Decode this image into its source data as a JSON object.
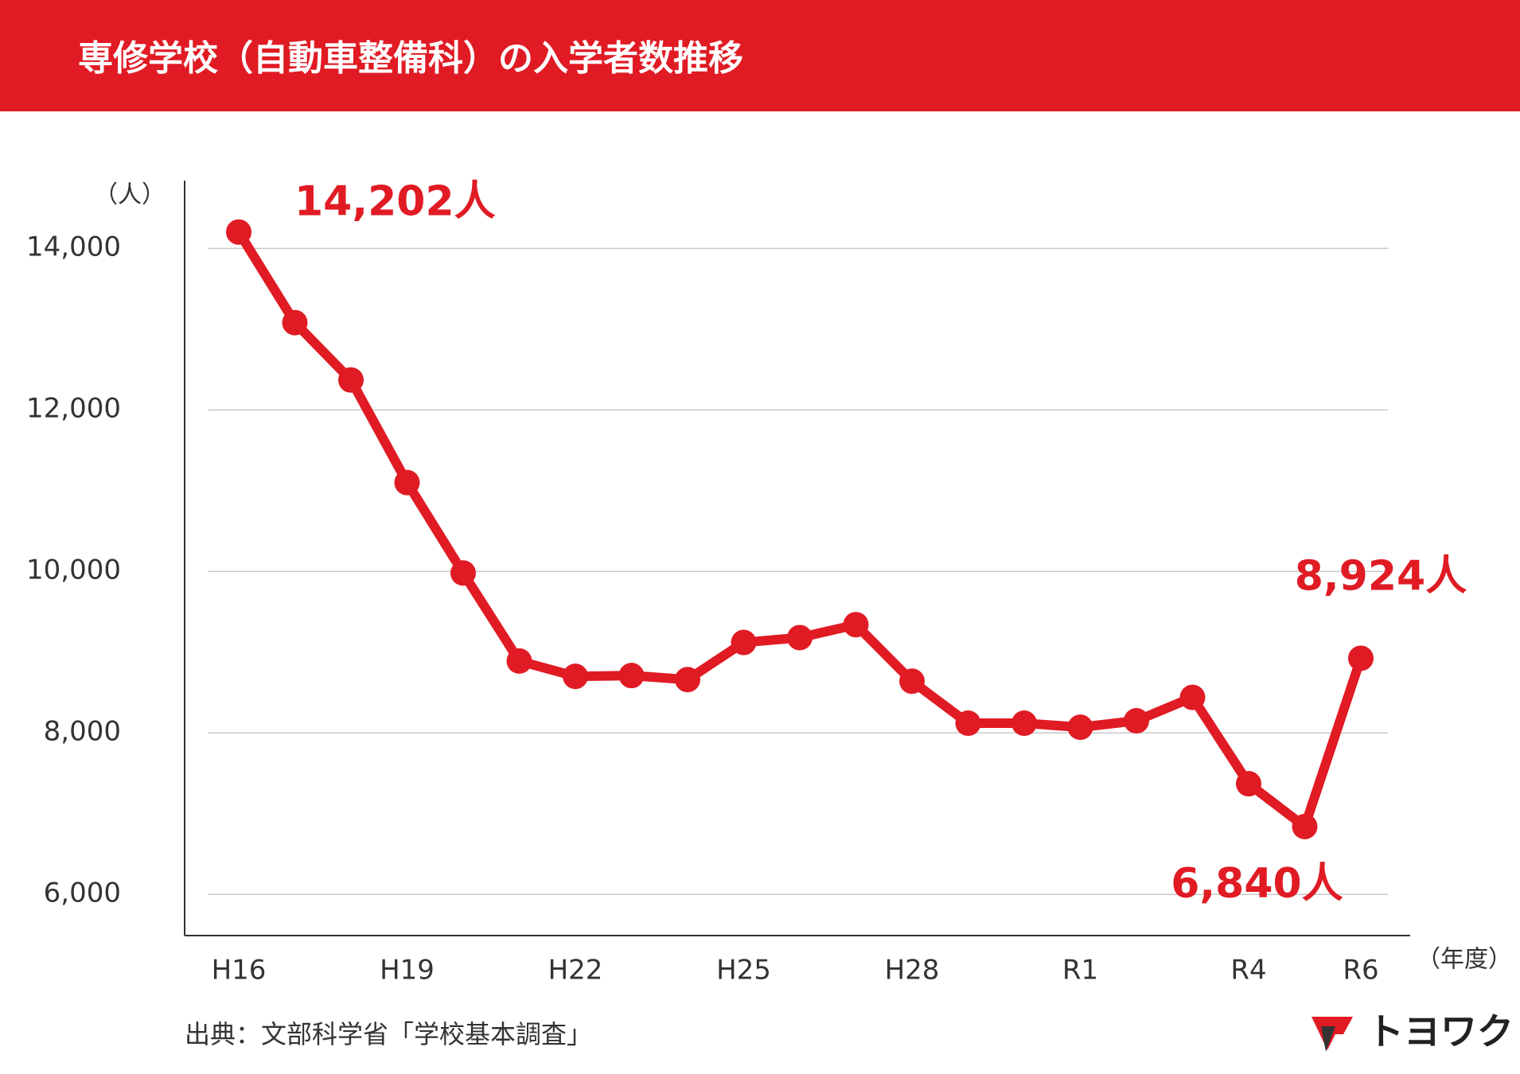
{
  "chart_data": {
    "type": "line",
    "title": "専修学校（自動車整備科）の入学者数推移",
    "y_unit": "（人）",
    "x_unit": "（年度）",
    "source": "出典：文部科学省「学校基本調査」",
    "logo": "トヨワク",
    "color": "#e01b24",
    "categories": [
      "H16",
      null,
      null,
      "H19",
      null,
      null,
      "H22",
      null,
      null,
      "H25",
      null,
      null,
      "H28",
      null,
      null,
      "R1",
      null,
      null,
      "R4",
      null,
      "R6"
    ],
    "values": [
      14202,
      13080,
      12370,
      11100,
      9980,
      8890,
      8700,
      8710,
      8660,
      9120,
      9180,
      9340,
      8640,
      8120,
      8120,
      8070,
      8150,
      8440,
      7370,
      6840,
      8924
    ],
    "value_labels": [
      "14,202人",
      null,
      null,
      null,
      null,
      null,
      null,
      null,
      null,
      null,
      null,
      null,
      null,
      null,
      null,
      null,
      null,
      null,
      null,
      "6,840人",
      "8,924人"
    ],
    "ylim": [
      5500,
      14800
    ],
    "yticks": [
      {
        "value": 6000,
        "label": "6,000"
      },
      {
        "value": 8000,
        "label": "8,000"
      },
      {
        "value": 10000,
        "label": "10,000"
      },
      {
        "value": 12000,
        "label": "12,000"
      },
      {
        "value": 14000,
        "label": "14,000"
      }
    ],
    "grid": true
  }
}
